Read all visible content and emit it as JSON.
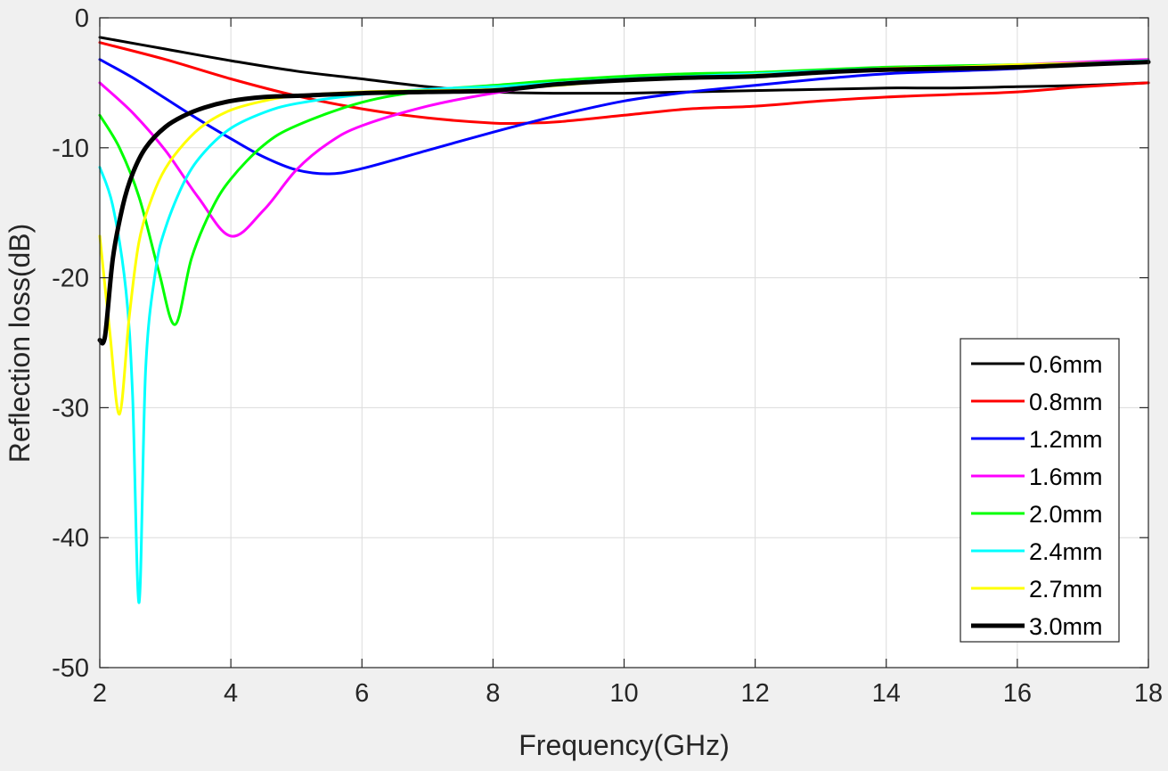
{
  "chart_data": {
    "type": "line",
    "title": "",
    "xlabel": "Frequency(GHz)",
    "ylabel": "Reflection loss(dB)",
    "xlim": [
      2,
      18
    ],
    "ylim": [
      -50,
      0
    ],
    "xticks": [
      "2",
      "4",
      "6",
      "8",
      "10",
      "12",
      "14",
      "16",
      "18"
    ],
    "yticks": [
      "0",
      "-10",
      "-20",
      "-30",
      "-40",
      "-50"
    ],
    "grid": true,
    "legend_position": "bottom-right",
    "series": [
      {
        "name": "0.6mm",
        "color": "#000000",
        "bold": false,
        "x": [
          2,
          3,
          4,
          5,
          6,
          7,
          8,
          9,
          10,
          11,
          12,
          13,
          14,
          15,
          16,
          17,
          18
        ],
        "y": [
          -1.5,
          -2.4,
          -3.3,
          -4.1,
          -4.7,
          -5.3,
          -5.7,
          -5.8,
          -5.8,
          -5.7,
          -5.6,
          -5.5,
          -5.4,
          -5.4,
          -5.3,
          -5.2,
          -5.0
        ]
      },
      {
        "name": "0.8mm",
        "color": "#ff0000",
        "bold": false,
        "x": [
          2,
          3,
          4,
          5,
          6,
          7,
          8,
          8.5,
          9,
          10,
          11,
          12,
          13,
          14,
          15,
          16,
          17,
          18
        ],
        "y": [
          -1.9,
          -3.2,
          -4.7,
          -6.0,
          -7.0,
          -7.7,
          -8.1,
          -8.1,
          -8.0,
          -7.5,
          -7.0,
          -6.8,
          -6.4,
          -6.1,
          -5.9,
          -5.7,
          -5.3,
          -5.0
        ]
      },
      {
        "name": "1.2mm",
        "color": "#0000ff",
        "bold": false,
        "x": [
          2,
          2.5,
          3,
          3.5,
          4,
          4.5,
          5,
          5.5,
          6,
          7,
          8,
          9,
          10,
          11,
          12,
          13,
          14,
          15,
          16,
          17,
          18
        ],
        "y": [
          -3.2,
          -4.6,
          -6.2,
          -7.8,
          -9.3,
          -10.7,
          -11.7,
          -12.0,
          -11.6,
          -10.2,
          -8.8,
          -7.5,
          -6.4,
          -5.7,
          -5.2,
          -4.7,
          -4.3,
          -4.1,
          -3.9,
          -3.6,
          -3.4
        ]
      },
      {
        "name": "1.6mm",
        "color": "#ff00ff",
        "bold": false,
        "x": [
          2,
          2.5,
          3,
          3.5,
          4,
          4.5,
          5,
          5.5,
          6,
          7,
          8,
          9,
          10,
          11,
          12,
          13,
          14,
          15,
          16,
          17,
          18
        ],
        "y": [
          -5.0,
          -7.3,
          -10.2,
          -13.8,
          -16.8,
          -14.8,
          -11.7,
          -9.6,
          -8.3,
          -6.8,
          -5.8,
          -5.1,
          -4.7,
          -4.5,
          -4.4,
          -4.2,
          -4.0,
          -3.8,
          -3.6,
          -3.4,
          -3.2
        ]
      },
      {
        "name": "2.0mm",
        "color": "#00ff00",
        "bold": false,
        "x": [
          2,
          2.3,
          2.6,
          2.9,
          3.15,
          3.4,
          3.7,
          4,
          4.5,
          5,
          6,
          7,
          8,
          9,
          10,
          11,
          12,
          13,
          14,
          15,
          16,
          17,
          18
        ],
        "y": [
          -7.5,
          -10.0,
          -13.8,
          -19.5,
          -23.6,
          -18.5,
          -14.8,
          -12.4,
          -9.8,
          -8.3,
          -6.5,
          -5.6,
          -5.2,
          -4.8,
          -4.5,
          -4.3,
          -4.2,
          -4.0,
          -3.8,
          -3.7,
          -3.6,
          -3.5,
          -3.3
        ]
      },
      {
        "name": "2.4mm",
        "color": "#00ffff",
        "bold": false,
        "x": [
          2,
          2.2,
          2.4,
          2.5,
          2.6,
          2.7,
          2.85,
          3,
          3.3,
          3.6,
          4,
          4.5,
          5,
          6,
          7,
          8,
          9,
          10,
          11,
          12,
          13,
          14,
          15,
          16,
          17,
          18
        ],
        "y": [
          -11.5,
          -14.5,
          -21.0,
          -29.0,
          -45.0,
          -27.0,
          -19.5,
          -16.2,
          -12.5,
          -10.3,
          -8.5,
          -7.3,
          -6.6,
          -5.9,
          -5.5,
          -5.3,
          -5.0,
          -4.7,
          -4.5,
          -4.3,
          -4.1,
          -3.9,
          -3.8,
          -3.6,
          -3.5,
          -3.3
        ]
      },
      {
        "name": "2.7mm",
        "color": "#ffff00",
        "bold": false,
        "x": [
          2,
          2.15,
          2.3,
          2.45,
          2.6,
          2.8,
          3,
          3.3,
          3.6,
          4,
          4.5,
          5,
          6,
          7,
          8,
          9,
          10,
          11,
          12,
          13,
          14,
          15,
          16,
          17,
          18
        ],
        "y": [
          -16.8,
          -24.0,
          -30.5,
          -23.0,
          -17.2,
          -13.8,
          -11.6,
          -9.6,
          -8.2,
          -7.1,
          -6.4,
          -6.0,
          -5.7,
          -5.6,
          -5.5,
          -5.2,
          -4.8,
          -4.6,
          -4.4,
          -4.2,
          -3.9,
          -3.8,
          -3.6,
          -3.5,
          -3.4
        ]
      },
      {
        "name": "3.0mm",
        "color": "#000000",
        "bold": true,
        "x": [
          2,
          2.08,
          2.2,
          2.35,
          2.5,
          2.7,
          3,
          3.3,
          3.6,
          4,
          4.5,
          5,
          6,
          7,
          8,
          9,
          10,
          11,
          12,
          13,
          14,
          15,
          16,
          17,
          18
        ],
        "y": [
          -24.8,
          -24.5,
          -18.5,
          -14.5,
          -12.0,
          -10.0,
          -8.4,
          -7.5,
          -6.9,
          -6.4,
          -6.1,
          -6.0,
          -5.8,
          -5.7,
          -5.6,
          -5.1,
          -4.8,
          -4.6,
          -4.5,
          -4.2,
          -4.0,
          -3.9,
          -3.8,
          -3.6,
          -3.4
        ]
      }
    ]
  }
}
